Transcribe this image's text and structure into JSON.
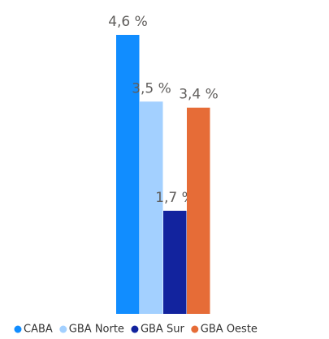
{
  "chart_data": {
    "type": "bar",
    "categories": [
      null
    ],
    "series": [
      {
        "name": "CABA",
        "color": "#118dff",
        "values": [
          4.6
        ],
        "value_labels": [
          "4,6 %"
        ]
      },
      {
        "name": "GBA Norte",
        "color": "#a3d0ff",
        "values": [
          3.5
        ],
        "value_labels": [
          "3,5 %"
        ]
      },
      {
        "name": "GBA Sur",
        "color": "#12239e",
        "values": [
          1.7
        ],
        "value_labels": [
          "1,7 %"
        ]
      },
      {
        "name": "GBA Oeste",
        "color": "#e66c37",
        "values": [
          3.4
        ],
        "value_labels": [
          "3,4 %"
        ]
      }
    ],
    "legend": "bottom"
  }
}
